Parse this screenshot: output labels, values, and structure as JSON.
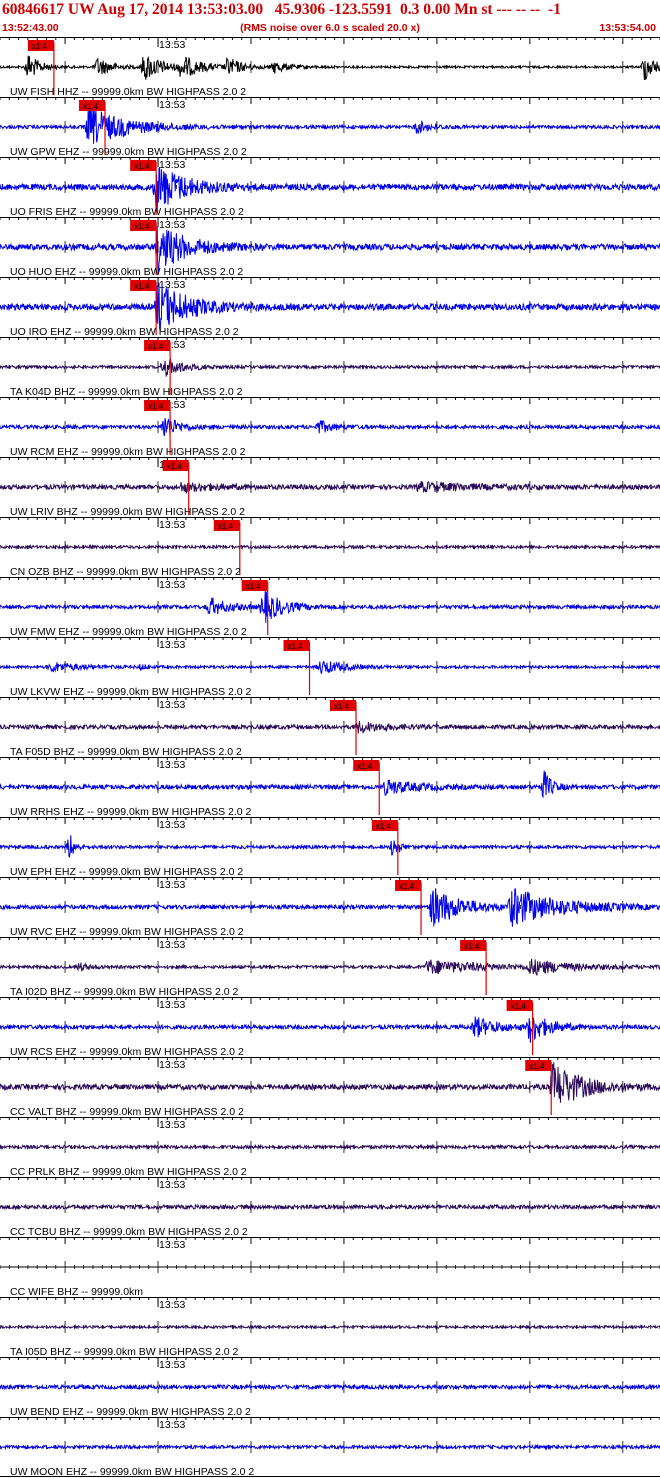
{
  "header": {
    "title": "60846617 UW Aug 17, 2014 13:53:03.00   45.9306 -123.5591  0.3 0.00 Mn st --- -- --  -1",
    "start_time": "13:52:43.00",
    "end_time": "13:53:54.00",
    "subtitle": "(RMS noise over 6.0 s scaled 20.0 x)"
  },
  "chart_data": {
    "type": "line",
    "title": "60846617 UW Aug 17, 2014 13:53:03.00   45.9306 -123.5591  0.3 0.00 Mn st --- -- --  -1",
    "subtitle": "(RMS noise over 6.0 s scaled 20.0 x)",
    "x_range": [
      "13:52:43.00",
      "13:53:54.00"
    ],
    "x_range_seconds": [
      0,
      71
    ],
    "minute_tick_label": "13:53",
    "minute_tick_seconds": 17,
    "pick_label": "x1.4",
    "colors": {
      "pick": "#e00000",
      "blue": "#0000ee",
      "purple": "#2a0a5a",
      "black": "#000000",
      "header_text": "#cc0000"
    },
    "series": [
      {
        "name": "UW FISH HHZ -- 99999.0km BW  HIGHPASS  2.0  2",
        "color": "#000000",
        "amp": 1.0,
        "pick": 3.0,
        "events": [
          {
            "t": 3.0,
            "a": 14,
            "d": 1.2
          },
          {
            "t": 10.5,
            "a": 10,
            "d": 1.5
          },
          {
            "t": 15.5,
            "a": 14,
            "d": 2
          },
          {
            "t": 19.5,
            "a": 11,
            "d": 2
          },
          {
            "t": 24.5,
            "a": 9,
            "d": 1.5
          },
          {
            "t": 29.5,
            "a": 6,
            "d": 1.5
          },
          {
            "t": 69.3,
            "a": 14,
            "d": 1.3
          }
        ]
      },
      {
        "name": "UW GPW EHZ -- 99999.0km BW  HIGHPASS  2.0  2",
        "color": "#0000ee",
        "amp": 1.6,
        "pick": 8.5,
        "events": [
          {
            "t": 9.5,
            "a": 20,
            "d": 4
          },
          {
            "t": 44.8,
            "a": 6,
            "d": 1.5
          }
        ]
      },
      {
        "name": "UO FRIS EHZ -- 99999.0km BW  HIGHPASS  2.0  2",
        "color": "#0000ee",
        "amp": 3.0,
        "pick": 14.0,
        "events": [
          {
            "t": 16.8,
            "a": 24,
            "d": 3
          }
        ]
      },
      {
        "name": "UO HUO EHZ -- 99999.0km BW  HIGHPASS  2.0  2",
        "color": "#0000ee",
        "amp": 3.0,
        "pick": 14.0,
        "events": [
          {
            "t": 17.0,
            "a": 24,
            "d": 3
          }
        ]
      },
      {
        "name": "UO IRO EHZ -- 99999.0km BW  HIGHPASS  2.0  2",
        "color": "#0000ee",
        "amp": 3.2,
        "pick": 14.0,
        "events": [
          {
            "t": 17.0,
            "a": 26,
            "d": 3
          }
        ]
      },
      {
        "name": "TA K04D BHZ -- 99999.0km BW  HIGHPASS  2.0  2",
        "color": "#2a0a5a",
        "amp": 1.4,
        "pick": 15.5,
        "events": [
          {
            "t": 17.6,
            "a": 10,
            "d": 2
          }
        ]
      },
      {
        "name": "UW RCM EHZ -- 99999.0km BW  HIGHPASS  2.0  2",
        "color": "#0000ee",
        "amp": 1.8,
        "pick": 15.5,
        "events": [
          {
            "t": 17.6,
            "a": 12,
            "d": 1.5
          },
          {
            "t": 34.3,
            "a": 6,
            "d": 1.5
          }
        ]
      },
      {
        "name": "UW LRIV BHZ -- 99999.0km BW  HIGHPASS  2.0  2",
        "color": "#2a0a5a",
        "amp": 2.2,
        "pick": 17.5,
        "events": [
          {
            "t": 19.5,
            "a": 4,
            "d": 4
          },
          {
            "t": 45,
            "a": 4,
            "d": 6
          }
        ]
      },
      {
        "name": "CN OZB BHZ -- 99999.0km BW  HIGHPASS  2.0  2",
        "color": "#2a0a5a",
        "amp": 1.4,
        "pick": 23.0,
        "events": []
      },
      {
        "name": "UW FMW EHZ -- 99999.0km BW  HIGHPASS  2.0  2",
        "color": "#0000ee",
        "amp": 1.8,
        "pick": 26.0,
        "events": [
          {
            "t": 22.5,
            "a": 9,
            "d": 2
          },
          {
            "t": 28.3,
            "a": 16,
            "d": 2
          }
        ]
      },
      {
        "name": "UW LKVW EHZ -- 99999.0km BW  HIGHPASS  2.0  2",
        "color": "#0000ee",
        "amp": 1.3,
        "pick": 30.5,
        "events": [
          {
            "t": 5.5,
            "a": 5,
            "d": 3
          },
          {
            "t": 15.2,
            "a": 3,
            "d": 0.5
          },
          {
            "t": 34.5,
            "a": 7,
            "d": 2.5
          }
        ]
      },
      {
        "name": "TA F05D BHZ -- 99999.0km BW  HIGHPASS  2.0  2",
        "color": "#2a0a5a",
        "amp": 2.0,
        "pick": 35.5,
        "events": [
          {
            "t": 38.5,
            "a": 5,
            "d": 3
          }
        ]
      },
      {
        "name": "UW RRHS EHZ -- 99999.0km BW  HIGHPASS  2.0  2",
        "color": "#0000ee",
        "amp": 2.2,
        "pick": 38.0,
        "events": [
          {
            "t": 41.5,
            "a": 7,
            "d": 3
          },
          {
            "t": 58.5,
            "a": 16,
            "d": 0.8
          }
        ]
      },
      {
        "name": "UW EPH EHZ -- 99999.0km BW  HIGHPASS  2.0  2",
        "color": "#0000ee",
        "amp": 1.6,
        "pick": 40.0,
        "events": [
          {
            "t": 7.5,
            "a": 14,
            "d": 0.5
          },
          {
            "t": 42.3,
            "a": 12,
            "d": 0.6
          }
        ]
      },
      {
        "name": "UW RVC EHZ -- 99999.0km BW  HIGHPASS  2.0  2",
        "color": "#0000ee",
        "amp": 2.0,
        "pick": 42.5,
        "events": [
          {
            "t": 46.5,
            "a": 20,
            "d": 3
          },
          {
            "t": 55,
            "a": 18,
            "d": 5
          }
        ]
      },
      {
        "name": "TA I02D BHZ -- 99999.0km BW  HIGHPASS  2.0  2",
        "color": "#2a0a5a",
        "amp": 1.4,
        "pick": 49.5,
        "events": [
          {
            "t": 8.5,
            "a": 4,
            "d": 1
          },
          {
            "t": 46,
            "a": 7,
            "d": 6
          },
          {
            "t": 57,
            "a": 7,
            "d": 4
          }
        ]
      },
      {
        "name": "UW RCS EHZ -- 99999.0km BW  HIGHPASS  2.0  2",
        "color": "#0000ee",
        "amp": 2.0,
        "pick": 54.5,
        "events": [
          {
            "t": 51,
            "a": 10,
            "d": 2.5
          },
          {
            "t": 57,
            "a": 14,
            "d": 2
          }
        ]
      },
      {
        "name": "CC VALT BHZ -- 99999.0km BW  HIGHPASS  2.0  2",
        "color": "#2a0a5a",
        "amp": 2.6,
        "pick": 56.5,
        "events": [
          {
            "t": 59.5,
            "a": 24,
            "d": 3
          }
        ]
      },
      {
        "name": "CC PRLK BHZ -- 99999.0km BW  HIGHPASS  2.0  2",
        "color": "#2a0a5a",
        "amp": 1.6,
        "pick": null,
        "events": []
      },
      {
        "name": "CC TCBU BHZ -- 99999.0km BW  HIGHPASS  2.0  2",
        "color": "#2a0a5a",
        "amp": 2.0,
        "pick": null,
        "events": []
      },
      {
        "name": "CC WIFE BHZ -- 99999.0km",
        "color": "#000000",
        "amp": 0.0,
        "pick": null,
        "events": []
      },
      {
        "name": "TA I05D BHZ -- 99999.0km BW  HIGHPASS  2.0  2",
        "color": "#2a0a5a",
        "amp": 1.2,
        "pick": null,
        "events": []
      },
      {
        "name": "UW BEND EHZ -- 99999.0km BW  HIGHPASS  2.0  2",
        "color": "#0000ee",
        "amp": 2.0,
        "pick": null,
        "events": []
      },
      {
        "name": "UW MOON EHZ -- 99999.0km BW  HIGHPASS  2.0  2",
        "color": "#0000ee",
        "amp": 1.6,
        "pick": null,
        "events": []
      }
    ]
  }
}
